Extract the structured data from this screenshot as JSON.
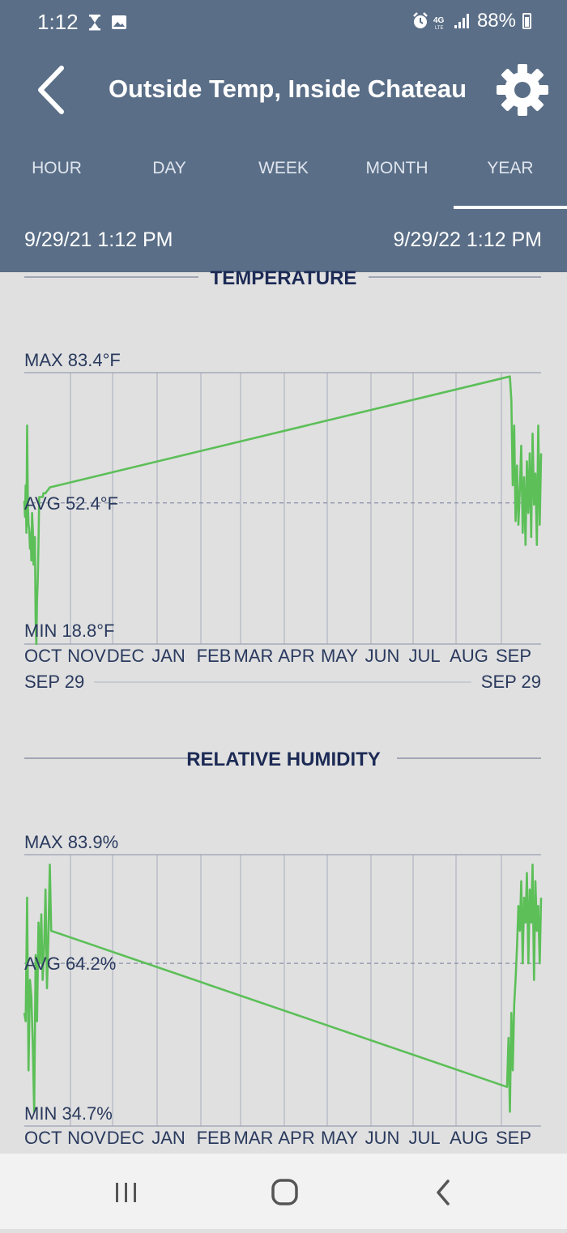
{
  "status_bar": {
    "time": "1:12",
    "battery": "88%",
    "icons": [
      "hourglass-icon",
      "image-icon",
      "alarm-icon",
      "4g-lte-icon",
      "signal-icon",
      "battery-icon"
    ]
  },
  "header": {
    "title": "Outside Temp, Inside Chateau",
    "back_icon": "chevron-left-icon",
    "settings_icon": "gear-icon"
  },
  "tabs": [
    {
      "label": "HOUR",
      "selected": false
    },
    {
      "label": "DAY",
      "selected": false
    },
    {
      "label": "WEEK",
      "selected": false
    },
    {
      "label": "MONTH",
      "selected": false
    },
    {
      "label": "YEAR",
      "selected": true
    }
  ],
  "date_range": {
    "start": "9/29/21 1:12 PM",
    "end": "9/29/22 1:12 PM"
  },
  "colors": {
    "header_bg": "#5a6e87",
    "page_bg": "#e0e0e0",
    "line": "#5cbf58",
    "title_text": "#1c2a55"
  },
  "chart_data": [
    {
      "type": "line",
      "title": "TEMPERATURE",
      "max_label": "MAX 83.4°F",
      "avg_label": "AVG 52.4°F",
      "min_label": "MIN 18.8°F",
      "ylim": [
        18.8,
        83.4
      ],
      "avg": 52.4,
      "month_labels": [
        "OCT",
        "NOV",
        "DEC",
        "JAN",
        "FEB",
        "MAR",
        "APR",
        "MAY",
        "JUN",
        "JUL",
        "AUG",
        "SEP"
      ],
      "range_start_label": "SEP 29",
      "range_end_label": "SEP 29",
      "x_unit": "days since range start",
      "series": [
        {
          "x": [
            0,
            0.5,
            1,
            1.5,
            2,
            2.5,
            3,
            3.5,
            4,
            4.5,
            5,
            5.5,
            6,
            6.5,
            7,
            7.5,
            8,
            8.5,
            9,
            9.5,
            10,
            10.5,
            11,
            11.5,
            12,
            12.5,
            13,
            13.5,
            14,
            14.5,
            15,
            16,
            17,
            18,
            343,
            344,
            345,
            346,
            347,
            348,
            349,
            350,
            351,
            352,
            353,
            354,
            355,
            356,
            357,
            358,
            359,
            360,
            361,
            362,
            363,
            364,
            365
          ],
          "values": [
            52.9,
            49.1,
            56.6,
            45.3,
            70.8,
            52.0,
            47.2,
            46.2,
            41.5,
            45.3,
            38.7,
            50.0,
            46.2,
            37.7,
            41.5,
            44.3,
            24.5,
            18.8,
            29.2,
            33.9,
            42.4,
            53.8,
            53.8,
            53.8,
            53.8,
            53.8,
            53.8,
            54.7,
            54.7,
            54.7,
            54.7,
            55.2,
            55.6,
            56.1,
            82.5,
            76.8,
            56.6,
            70.8,
            48.1,
            61.3,
            47.2,
            55.6,
            66.0,
            45.3,
            58.5,
            42.4,
            62.3,
            50.0,
            64.2,
            44.3,
            68.9,
            52.0,
            59.4,
            42.4,
            70.8,
            47.2,
            64.2
          ]
        }
      ]
    },
    {
      "type": "line",
      "title": "RELATIVE HUMIDITY",
      "max_label": "MAX 83.9%",
      "avg_label": "AVG 64.2%",
      "min_label": "MIN 34.7%",
      "ylim": [
        34.7,
        83.9
      ],
      "avg": 64.2,
      "month_labels": [
        "OCT",
        "NOV",
        "DEC",
        "JAN",
        "FEB",
        "MAR",
        "APR",
        "MAY",
        "JUN",
        "JUL",
        "AUG",
        "SEP"
      ],
      "x_unit": "days since range start",
      "series": [
        {
          "x": [
            0,
            1,
            2,
            3,
            4,
            5,
            6,
            7,
            8,
            9,
            10,
            11,
            12,
            13,
            14,
            15,
            16,
            17,
            18,
            19,
            341,
            342,
            343,
            344,
            345,
            346,
            347,
            348,
            349,
            350,
            351,
            352,
            353,
            354,
            355,
            356,
            357,
            358,
            359,
            360,
            361,
            362,
            363,
            364,
            365
          ],
          "values": [
            55.2,
            53.7,
            76.1,
            44.8,
            61.2,
            58.2,
            49.3,
            37.3,
            65.7,
            53.7,
            71.6,
            64.2,
            73.1,
            61.2,
            67.2,
            77.6,
            59.7,
            68.7,
            82.1,
            70.1,
            41.8,
            50.7,
            37.3,
            55.2,
            44.8,
            56.7,
            61.2,
            67.2,
            74.6,
            70.1,
            79.1,
            64.2,
            76.1,
            71.6,
            80.6,
            64.2,
            77.6,
            71.6,
            82.1,
            61.2,
            79.1,
            70.1,
            74.6,
            64.2,
            76.1
          ]
        }
      ]
    }
  ]
}
